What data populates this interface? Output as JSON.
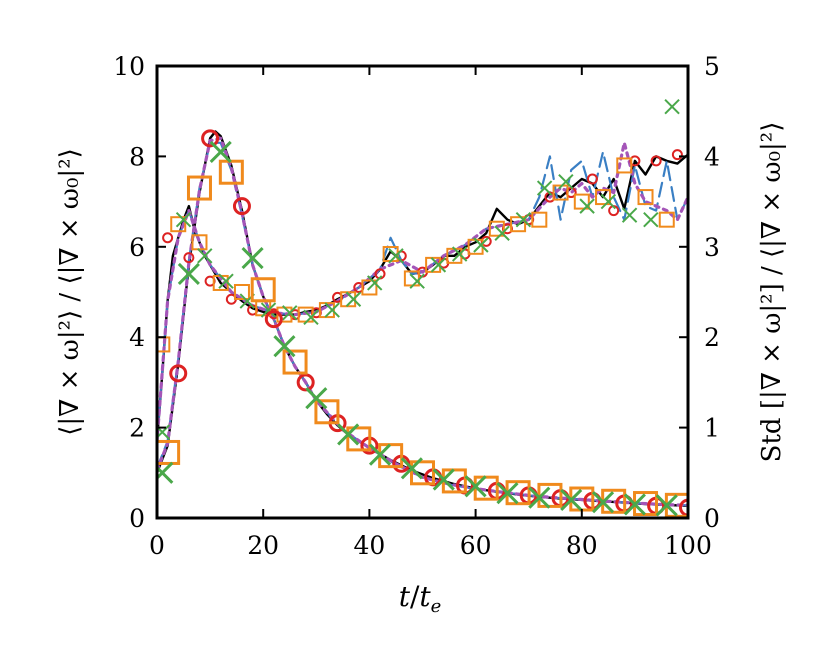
{
  "chart_data": {
    "type": "line",
    "xlabel": "t/t_e",
    "xlabel_parts": {
      "t": "t",
      "slash": "/",
      "te": "t",
      "e": "e"
    },
    "ylabel_left": "⟨|∇ × ω|²⟩ / ⟨|∇ × ω₀|²⟩",
    "ylabel_right": "Std [|∇ × ω|²] / ⟨|∇ × ω₀|²⟩",
    "xlim": [
      0,
      100
    ],
    "ylim_left": [
      0,
      10
    ],
    "ylim_right": [
      0,
      5
    ],
    "x_ticks": [
      "0",
      "20",
      "40",
      "60",
      "80",
      "100"
    ],
    "x_tick_values": [
      0,
      20,
      40,
      60,
      80,
      100
    ],
    "y_left_ticks": [
      "0",
      "2",
      "4",
      "6",
      "8",
      "10"
    ],
    "y_left_tick_values": [
      0,
      2,
      4,
      6,
      8,
      10
    ],
    "y_right_ticks": [
      "0",
      "1",
      "2",
      "3",
      "4",
      "5"
    ],
    "y_right_tick_values": [
      0,
      1,
      2,
      3,
      4,
      5
    ],
    "grid": false,
    "legend": "none",
    "colors": {
      "black": "#000000",
      "red": "#dd2222",
      "orange": "#f08a1c",
      "green": "#4aa84a",
      "blue": "#3a7fc4",
      "purple": "#a455b8"
    },
    "mean_series": [
      {
        "axis": "left",
        "line": "black-solid",
        "x": [
          0,
          2,
          4,
          6,
          8,
          10,
          11,
          12,
          14,
          16,
          18,
          20,
          22,
          24,
          26,
          28,
          30,
          32,
          34,
          36,
          38,
          40,
          44,
          48,
          52,
          56,
          60,
          64,
          68,
          72,
          76,
          80,
          84,
          88,
          92,
          96,
          100
        ],
        "y": [
          1.0,
          1.6,
          3.4,
          5.6,
          7.2,
          8.4,
          8.55,
          8.45,
          7.8,
          6.8,
          5.6,
          4.9,
          4.4,
          3.8,
          3.35,
          3.0,
          2.6,
          2.3,
          2.05,
          1.85,
          1.7,
          1.55,
          1.28,
          1.05,
          0.88,
          0.75,
          0.65,
          0.58,
          0.52,
          0.47,
          0.43,
          0.4,
          0.37,
          0.34,
          0.31,
          0.29,
          0.27
        ]
      },
      {
        "axis": "left",
        "line": "blue-dashed",
        "x": [
          0,
          2,
          4,
          6,
          8,
          10,
          12,
          14,
          16,
          18,
          20,
          22,
          24,
          26,
          28,
          30,
          35,
          40,
          45,
          50,
          55,
          60,
          65,
          70,
          75,
          80,
          85,
          90,
          95,
          100
        ],
        "y": [
          1.1,
          1.7,
          3.5,
          5.7,
          7.3,
          8.3,
          8.3,
          7.7,
          6.7,
          5.6,
          4.9,
          4.4,
          3.8,
          3.35,
          3.0,
          2.6,
          1.95,
          1.55,
          1.18,
          0.9,
          0.74,
          0.64,
          0.57,
          0.5,
          0.45,
          0.41,
          0.37,
          0.33,
          0.3,
          0.28
        ]
      },
      {
        "axis": "left",
        "line": "purple-dotted",
        "x": [
          0,
          2,
          4,
          6,
          8,
          10,
          12,
          14,
          16,
          18,
          20,
          22,
          24,
          26,
          28,
          30,
          35,
          40,
          45,
          50,
          55,
          60,
          65,
          70,
          75,
          80,
          85,
          90,
          95,
          100
        ],
        "y": [
          1.05,
          1.65,
          3.45,
          5.65,
          7.25,
          8.35,
          8.4,
          7.75,
          6.75,
          5.6,
          4.9,
          4.4,
          3.8,
          3.35,
          3.0,
          2.6,
          1.95,
          1.55,
          1.2,
          0.9,
          0.75,
          0.65,
          0.57,
          0.5,
          0.45,
          0.41,
          0.37,
          0.33,
          0.3,
          0.28
        ]
      }
    ],
    "mean_markers": [
      {
        "marker": "circle",
        "color": "red",
        "x": [
          4,
          10,
          16,
          22,
          28,
          34,
          40,
          46,
          52,
          58,
          64,
          70,
          76,
          82,
          88,
          94,
          100
        ],
        "y": [
          3.2,
          8.4,
          6.9,
          4.4,
          3.0,
          2.1,
          1.6,
          1.2,
          0.9,
          0.72,
          0.6,
          0.5,
          0.44,
          0.38,
          0.32,
          0.27,
          0.23
        ]
      },
      {
        "marker": "square",
        "color": "orange",
        "x": [
          2,
          8,
          14,
          20,
          26,
          32,
          38,
          44,
          50,
          56,
          62,
          68,
          74,
          80,
          86,
          92,
          98
        ],
        "y": [
          1.45,
          7.3,
          7.65,
          5.05,
          3.45,
          2.35,
          1.75,
          1.38,
          1.0,
          0.82,
          0.66,
          0.56,
          0.5,
          0.42,
          0.37,
          0.32,
          0.28
        ]
      },
      {
        "marker": "x",
        "color": "green",
        "x": [
          1,
          6,
          12,
          18,
          24,
          30,
          36,
          42,
          48,
          54,
          60,
          66,
          72,
          78,
          84,
          90,
          96
        ],
        "y": [
          1.0,
          5.4,
          8.1,
          5.75,
          3.8,
          2.65,
          1.85,
          1.4,
          1.1,
          0.85,
          0.7,
          0.55,
          0.45,
          0.4,
          0.35,
          0.3,
          0.28
        ]
      }
    ],
    "std_series": [
      {
        "axis": "right",
        "line": "black-solid",
        "x": [
          0,
          1,
          2,
          3,
          4,
          5,
          6,
          7,
          8,
          9,
          10,
          12,
          14,
          16,
          18,
          20,
          22,
          24,
          26,
          28,
          30,
          32,
          34,
          36,
          38,
          40,
          42,
          44,
          46,
          48,
          50,
          52,
          54,
          56,
          58,
          60,
          62,
          64,
          66,
          68,
          70,
          72,
          74,
          76,
          78,
          80,
          82,
          84,
          86,
          88,
          90,
          92,
          94,
          96,
          98,
          100
        ],
        "y": [
          0.85,
          1.6,
          2.4,
          2.9,
          3.1,
          3.3,
          3.45,
          3.2,
          3.05,
          2.9,
          2.8,
          2.6,
          2.5,
          2.4,
          2.32,
          2.28,
          2.25,
          2.25,
          2.25,
          2.28,
          2.3,
          2.35,
          2.42,
          2.48,
          2.55,
          2.62,
          2.75,
          2.95,
          2.85,
          2.7,
          2.72,
          2.8,
          2.9,
          2.9,
          3.0,
          3.05,
          3.15,
          3.42,
          3.3,
          3.25,
          3.3,
          3.45,
          3.6,
          3.55,
          3.65,
          3.75,
          3.7,
          3.55,
          3.75,
          3.42,
          3.95,
          3.8,
          4.0,
          3.95,
          3.92,
          4.02
        ]
      },
      {
        "axis": "right",
        "line": "blue-dashed",
        "x": [
          0,
          2,
          4,
          6,
          8,
          10,
          14,
          18,
          22,
          26,
          30,
          34,
          38,
          42,
          44,
          46,
          48,
          50,
          54,
          58,
          62,
          66,
          70,
          72,
          74,
          76,
          78,
          80,
          82,
          84,
          86,
          88,
          90,
          92,
          94,
          96,
          98,
          100
        ],
        "y": [
          0.85,
          2.4,
          3.1,
          3.4,
          3.05,
          2.8,
          2.5,
          2.35,
          2.27,
          2.25,
          2.28,
          2.4,
          2.55,
          2.75,
          3.1,
          2.85,
          2.7,
          2.72,
          2.9,
          3.02,
          3.2,
          3.25,
          3.3,
          3.55,
          4.0,
          3.3,
          3.85,
          3.95,
          3.55,
          4.05,
          3.55,
          3.3,
          3.9,
          3.45,
          3.4,
          3.95,
          3.3,
          3.55
        ]
      },
      {
        "axis": "right",
        "line": "purple-dotted",
        "x": [
          0,
          2,
          4,
          6,
          8,
          10,
          14,
          18,
          22,
          26,
          30,
          34,
          38,
          42,
          46,
          50,
          54,
          58,
          62,
          66,
          70,
          74,
          76,
          78,
          80,
          82,
          84,
          86,
          88,
          90,
          92,
          94,
          96,
          98,
          100
        ],
        "y": [
          0.85,
          2.4,
          3.1,
          3.4,
          3.05,
          2.8,
          2.5,
          2.35,
          2.27,
          2.25,
          2.28,
          2.4,
          2.55,
          2.75,
          2.85,
          2.72,
          2.9,
          3.02,
          3.2,
          3.25,
          3.3,
          3.55,
          3.65,
          3.6,
          3.7,
          3.55,
          3.65,
          3.6,
          4.15,
          3.7,
          3.5,
          3.45,
          3.4,
          3.3,
          3.55
        ]
      }
    ],
    "std_markers": [
      {
        "marker": "circle",
        "color": "red",
        "x": [
          2,
          6,
          10,
          14,
          18,
          22,
          26,
          30,
          34,
          38,
          42,
          46,
          50,
          54,
          58,
          62,
          66,
          70,
          74,
          78,
          82,
          86,
          90,
          94,
          98
        ],
        "y": [
          3.1,
          2.88,
          2.62,
          2.42,
          2.3,
          2.26,
          2.25,
          2.27,
          2.44,
          2.55,
          2.7,
          2.9,
          2.72,
          2.82,
          2.92,
          3.06,
          3.2,
          3.3,
          3.55,
          3.6,
          3.75,
          3.4,
          3.95,
          3.95,
          4.02
        ]
      },
      {
        "marker": "square",
        "color": "orange",
        "x": [
          1,
          4,
          8,
          12,
          16,
          20,
          24,
          28,
          32,
          36,
          40,
          44,
          48,
          52,
          56,
          60,
          64,
          68,
          72,
          76,
          80,
          84,
          88,
          92,
          96
        ],
        "y": [
          1.92,
          3.25,
          3.05,
          2.6,
          2.5,
          2.32,
          2.25,
          2.25,
          2.3,
          2.42,
          2.55,
          2.92,
          2.65,
          2.8,
          2.9,
          3.0,
          3.2,
          3.25,
          3.3,
          3.6,
          3.5,
          3.55,
          3.9,
          3.55,
          3.3
        ]
      },
      {
        "marker": "x",
        "color": "green",
        "x": [
          1,
          5,
          9,
          13,
          17,
          21,
          25,
          29,
          33,
          37,
          41,
          45,
          49,
          53,
          57,
          61,
          65,
          69,
          73,
          77,
          81,
          85,
          89,
          93,
          97
        ],
        "y": [
          0.95,
          3.3,
          2.9,
          2.62,
          2.4,
          2.3,
          2.27,
          2.22,
          2.3,
          2.42,
          2.6,
          2.9,
          2.62,
          2.8,
          2.92,
          3.02,
          3.15,
          3.3,
          3.65,
          3.72,
          3.45,
          3.5,
          3.35,
          3.3,
          4.55
        ]
      }
    ]
  }
}
